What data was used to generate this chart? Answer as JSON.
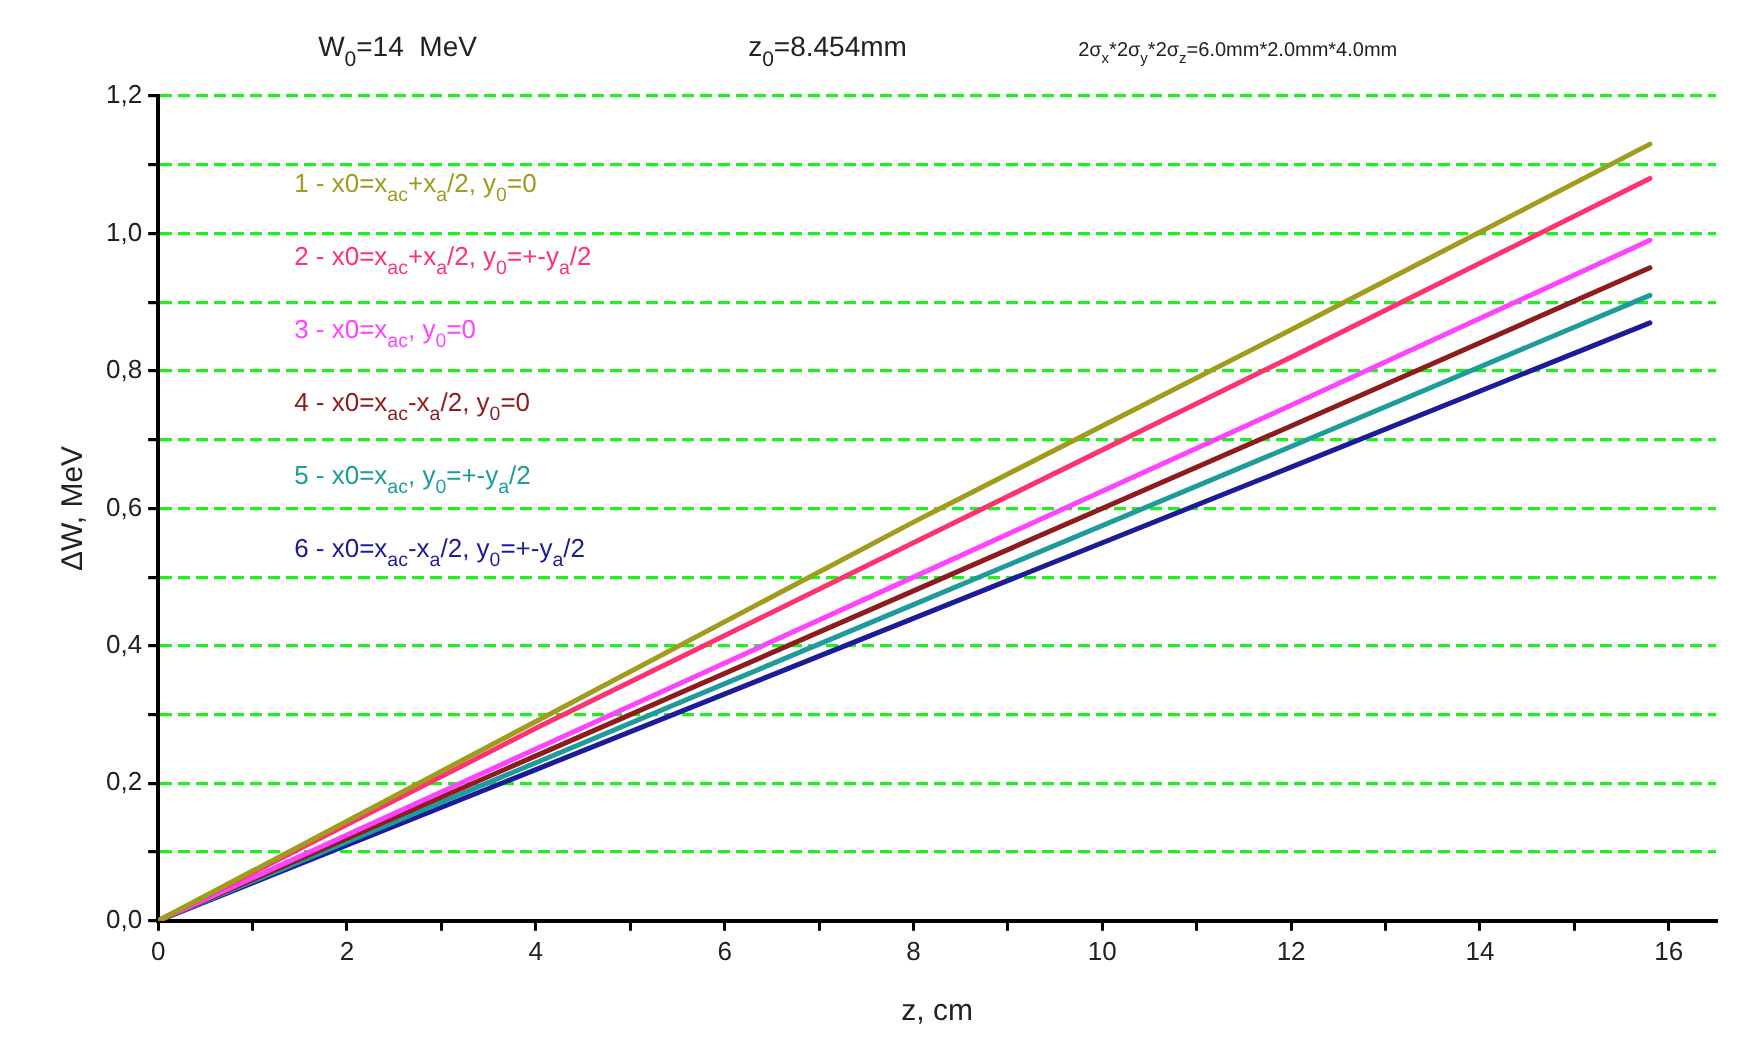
{
  "chart_data": {
    "type": "line",
    "xlabel": "z, cm",
    "ylabel": "ΔW, MeV",
    "annotations": [
      "W$_{0}$=14  MeV",
      "z$_{0}$=8.454mm",
      "2σ$_{x}$*2σ$_{y}$*2σ$_{z}$=6.0mm*2.0mm*4.0mm"
    ],
    "series": [
      {
        "name": "1 - x0=x$_{ac}$+x$_{a}$/2, y$_{0}$=0",
        "color": "#a09c1e",
        "x": [
          0,
          4,
          8,
          12,
          15.8
        ],
        "values": [
          0,
          0.29,
          0.58,
          0.86,
          1.13
        ]
      },
      {
        "name": "2 - x0=x$_{ac}$+x$_{a}$/2, y$_{0}$=+-y$_{a}$/2",
        "color": "#ff3370",
        "x": [
          0,
          4,
          8,
          12,
          15.8
        ],
        "values": [
          0,
          0.28,
          0.55,
          0.82,
          1.08
        ]
      },
      {
        "name": "3 - x0=x$_{ac}$, y$_{0}$=0",
        "color": "#ff44ff",
        "x": [
          0,
          4,
          8,
          12,
          15.8
        ],
        "values": [
          0,
          0.25,
          0.5,
          0.75,
          0.99
        ]
      },
      {
        "name": "4 - x0=x$_{ac}$-x$_{a}$/2, y$_{0}$=0",
        "color": "#8e1c1c",
        "x": [
          0,
          4,
          8,
          12,
          15.8
        ],
        "values": [
          0,
          0.24,
          0.48,
          0.72,
          0.95
        ]
      },
      {
        "name": "5 - x0=x$_{ac}$, y$_{0}$=+-y$_{a}$/2",
        "color": "#1e9c9c",
        "x": [
          0,
          4,
          8,
          12,
          15.8
        ],
        "values": [
          0,
          0.23,
          0.46,
          0.69,
          0.91
        ]
      },
      {
        "name": "6 - x0=x$_{ac}$-x$_{a}$/2, y$_{0}$=+-y$_{a}$/2",
        "color": "#1c1c9a",
        "x": [
          0,
          4,
          8,
          12,
          15.8
        ],
        "values": [
          0,
          0.22,
          0.44,
          0.66,
          0.87
        ]
      }
    ],
    "xlim": [
      0,
      16.5
    ],
    "xticks": [
      0,
      {
        "value": 1,
        "label": null
      },
      2,
      {
        "value": 3,
        "label": null
      },
      4,
      {
        "value": 5,
        "label": null
      },
      6,
      {
        "value": 7,
        "label": null
      },
      8,
      {
        "value": 9,
        "label": null
      },
      10,
      {
        "value": 11,
        "label": null
      },
      12,
      {
        "value": 13,
        "label": null
      },
      14,
      {
        "value": 15,
        "label": null
      },
      16
    ],
    "ylim": [
      0,
      1.2
    ],
    "yticks": [
      {
        "value": 0,
        "label": "0,0"
      },
      {
        "value": 0.1,
        "label": null
      },
      {
        "value": 0.2,
        "label": "0,2"
      },
      {
        "value": 0.3,
        "label": null
      },
      {
        "value": 0.4,
        "label": "0,4"
      },
      {
        "value": 0.5,
        "label": null
      },
      {
        "value": 0.6,
        "label": "0,6"
      },
      {
        "value": 0.7,
        "label": null
      },
      {
        "value": 0.8,
        "label": "0,8"
      },
      {
        "value": 0.9,
        "label": null
      },
      {
        "value": 1,
        "label": "1,0"
      },
      {
        "value": 1.1,
        "label": null
      },
      {
        "value": 1.2,
        "label": "1,2"
      }
    ],
    "grid": "y",
    "legend": "top left",
    "marker": "none",
    "line_style": "solid"
  }
}
